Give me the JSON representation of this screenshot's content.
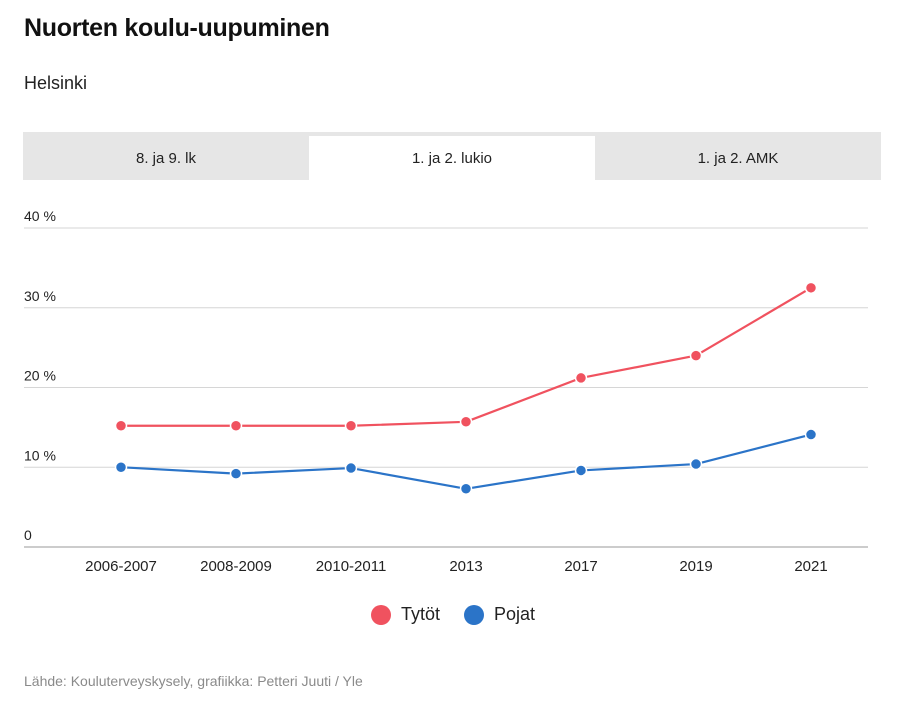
{
  "header": {
    "title": "Nuorten koulu-uupuminen",
    "subtitle": "Helsinki"
  },
  "tabs": [
    {
      "label": "8. ja 9. lk",
      "active": false
    },
    {
      "label": "1. ja 2. lukio",
      "active": true
    },
    {
      "label": "1. ja 2. AMK",
      "active": false
    }
  ],
  "colors": {
    "tytot": "#f0525f",
    "pojat": "#2b74c8",
    "grid": "#d6d6d6",
    "axis": "#999999"
  },
  "chart_data": {
    "type": "line",
    "categories": [
      "2006-2007",
      "2008-2009",
      "2010-2011",
      "2013",
      "2017",
      "2019",
      "2021"
    ],
    "yticks": [
      "0",
      "10 %",
      "20 %",
      "30 %",
      "40 %"
    ],
    "ylim": [
      0,
      40
    ],
    "grid": true,
    "legend_position": "bottom",
    "series": [
      {
        "name": "Tytöt",
        "values": [
          15.2,
          15.2,
          15.2,
          15.7,
          21.2,
          24.0,
          32.5
        ]
      },
      {
        "name": "Pojat",
        "values": [
          10.0,
          9.2,
          9.9,
          7.3,
          9.6,
          10.4,
          14.1
        ]
      }
    ]
  },
  "legend": [
    {
      "label": "Tytöt"
    },
    {
      "label": "Pojat"
    }
  ],
  "footer": {
    "source": "Lähde: Kouluterveyskysely, grafiikka: Petteri Juuti / Yle"
  }
}
